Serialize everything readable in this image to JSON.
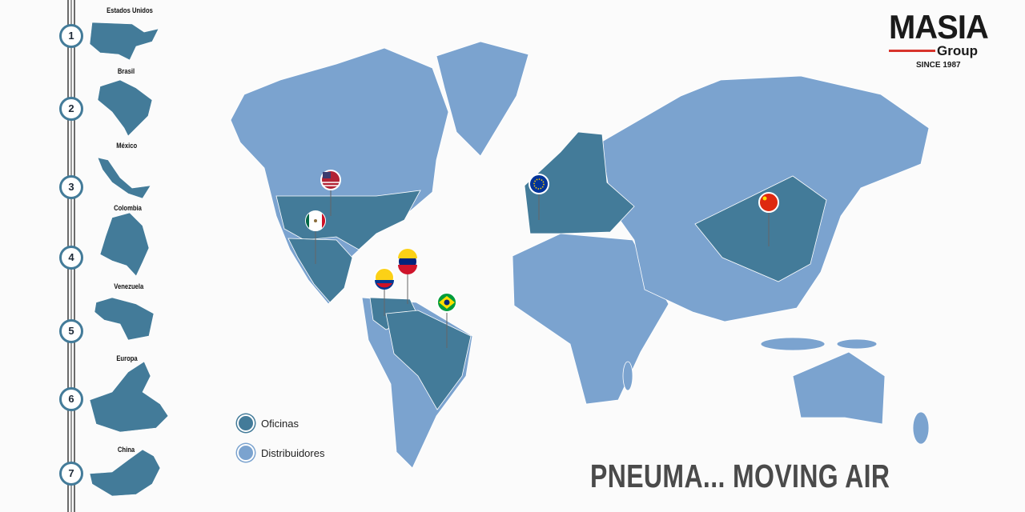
{
  "colors": {
    "office": "#437b99",
    "distributor": "#7ba3cf",
    "accent": "#d8342c"
  },
  "logo": {
    "name": "MASIA",
    "sub": "Group",
    "since": "SINCE 1987"
  },
  "timeline": [
    {
      "num": "1",
      "label": "Estados Unidos"
    },
    {
      "num": "2",
      "label": "Brasil"
    },
    {
      "num": "3",
      "label": "México"
    },
    {
      "num": "4",
      "label": "Colombia"
    },
    {
      "num": "5",
      "label": "Venezuela"
    },
    {
      "num": "6",
      "label": "Europa"
    },
    {
      "num": "7",
      "label": "China"
    }
  ],
  "legend": {
    "offices": "Oficinas",
    "distributors": "Distribuidores"
  },
  "pins": [
    "usa-flag",
    "mexico-flag",
    "colombia-flag",
    "venezuela-flag",
    "brazil-flag",
    "eu-flag",
    "china-flag"
  ],
  "slogan": "PNEUMA... MOVING AIR"
}
